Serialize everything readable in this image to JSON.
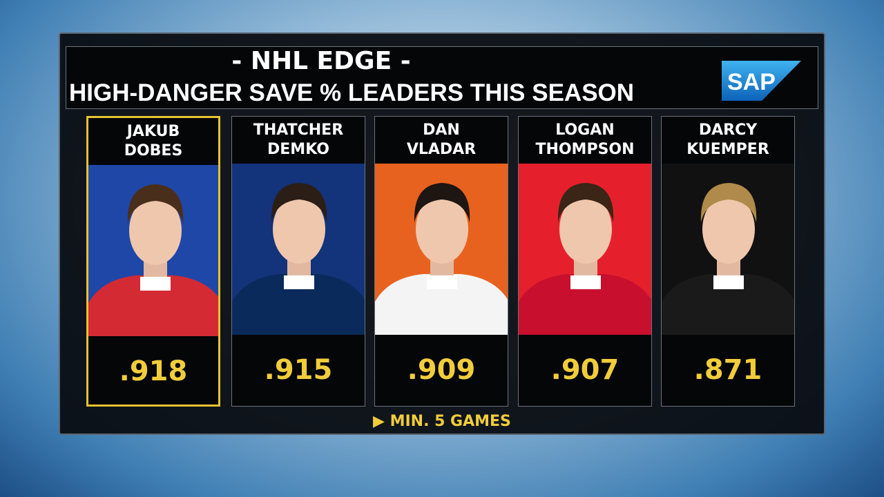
{
  "header": {
    "title": "- NHL EDGE -",
    "subtitle": "HIGH-DANGER SAVE % LEADERS THIS SEASON",
    "sponsor": "SAP"
  },
  "players": [
    {
      "first": "JAKUB",
      "last": "DOBES",
      "value": ".918"
    },
    {
      "first": "THATCHER",
      "last": "DEMKO",
      "value": ".915"
    },
    {
      "first": "DAN",
      "last": "VLADAR",
      "value": ".909"
    },
    {
      "first": "LOGAN",
      "last": "THOMPSON",
      "value": ".907"
    },
    {
      "first": "DARCY",
      "last": "KUEMPER",
      "value": ".871"
    }
  ],
  "footnote": "MIN. 5 GAMES"
}
